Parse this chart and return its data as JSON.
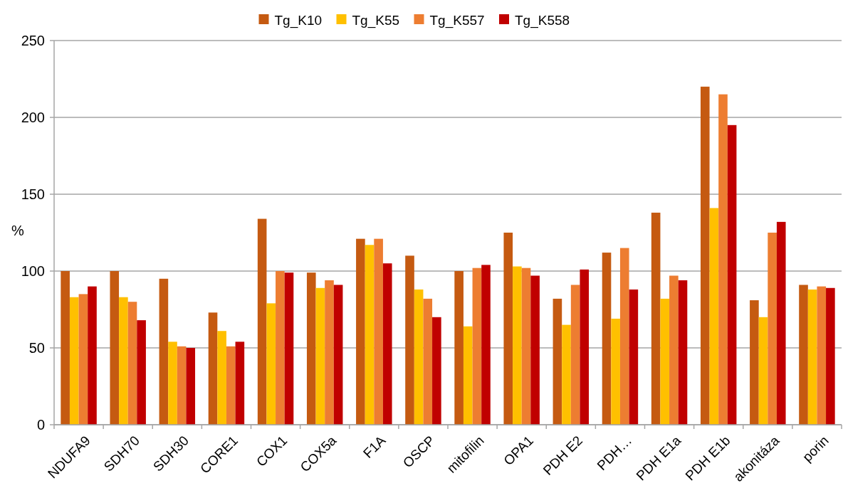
{
  "chart_data": {
    "type": "bar",
    "ylabel": "%",
    "categories": [
      "NDUFA9",
      "SDH70",
      "SDH30",
      "CORE1",
      "COX1",
      "COX5a",
      "F1A",
      "OSCP",
      "mitofilin",
      "OPA1",
      "PDH E2",
      "PDH…",
      "PDH E1a",
      "PDH E1b",
      "akonitáza",
      "porin"
    ],
    "series": [
      {
        "name": "Tg_K10",
        "color": "#c55a11",
        "values": [
          100,
          100,
          95,
          73,
          134,
          99,
          121,
          110,
          100,
          125,
          82,
          112,
          138,
          220,
          81,
          91
        ]
      },
      {
        "name": "Tg_K55",
        "color": "#ffc000",
        "values": [
          83,
          83,
          54,
          61,
          79,
          89,
          117,
          88,
          64,
          103,
          65,
          69,
          82,
          141,
          70,
          88
        ]
      },
      {
        "name": "Tg_K557",
        "color": "#ed7d31",
        "values": [
          85,
          80,
          51,
          51,
          100,
          94,
          121,
          82,
          102,
          102,
          91,
          115,
          97,
          215,
          125,
          90
        ]
      },
      {
        "name": "Tg_K558",
        "color": "#c00000",
        "values": [
          90,
          68,
          50,
          54,
          99,
          91,
          105,
          70,
          104,
          97,
          101,
          88,
          94,
          195,
          132,
          89
        ]
      }
    ],
    "ylim": [
      0,
      250
    ],
    "yticks": [
      0,
      50,
      100,
      150,
      200,
      250
    ],
    "grid": "y",
    "legend": "top"
  }
}
